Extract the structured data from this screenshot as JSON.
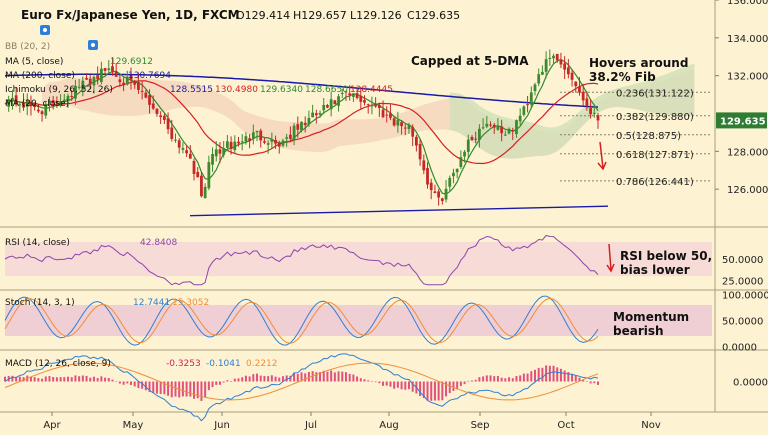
{
  "header": {
    "symbol": "Euro Fx/Japanese Yen, 1D, FXCM",
    "ohlc": [
      {
        "label": "O",
        "value": "129.414"
      },
      {
        "label": "H",
        "value": "129.657"
      },
      {
        "label": "L",
        "value": "129.126"
      },
      {
        "label": "C",
        "value": "129.635"
      }
    ]
  },
  "indicators": {
    "ma5": {
      "label": "MA (5, close)",
      "value": "129.6912"
    },
    "ma200": {
      "label": "MA (200, close)",
      "value": "130.7694"
    },
    "bb": {
      "label": "BB (20, 2)"
    },
    "ichimoku": {
      "label": "Ichimoku (9, 26, 52, 26)",
      "values": [
        "128.5515",
        "130.4980",
        "129.6340",
        "128.6650",
        "128.4445"
      ]
    },
    "ma_extra": {
      "label": "MA (20, close)"
    }
  },
  "annotations": {
    "capped": "Capped at 5-DMA",
    "hovers": [
      "Hovers around",
      "38.2% Fib"
    ],
    "rsi_note": [
      "RSI below 50,",
      "bias lower"
    ],
    "stoch_note": [
      "Momentum",
      "bearish"
    ]
  },
  "colors": {
    "background": "#fdf3d2",
    "up_candle": "#3d8a2e",
    "down_candle": "#c62828",
    "ma200": "#1a1aa8",
    "ma5": "#2e8b2e",
    "ma50": "#d62020",
    "cloud": "#cfe0b8",
    "cloud_bear": "#f3c7b0",
    "price_tag": "#2e7d32",
    "rsi_line": "#8e44ad",
    "stoch_k": "#2f7fd6",
    "stoch_d": "#f08c3a",
    "macd_line": "#2f7fd6",
    "macd_signal": "#f08c3a",
    "macd_hist": "#d81b60"
  },
  "chart_data": [
    {
      "type": "candlestick",
      "pane": "price",
      "title": "Euro Fx/Japanese Yen, 1D, FXCM",
      "x_ticks": [
        "Apr",
        "May",
        "Jun",
        "Jul",
        "Aug",
        "Sep",
        "Oct",
        "Nov"
      ],
      "y_ticks": [
        "136.000",
        "134.000",
        "132.000",
        "128.000",
        "126.000"
      ],
      "ylim": [
        124,
        136
      ],
      "last_price": "129.635",
      "fib_levels": [
        {
          "label": "0.236(131.122)",
          "value": 131.122
        },
        {
          "label": "0.382(129.880)",
          "value": 129.88
        },
        {
          "label": "0.5(128.875)",
          "value": 128.875
        },
        {
          "label": "0.618(127.871)",
          "value": 127.871
        },
        {
          "label": "0.786(126.441)",
          "value": 126.441
        }
      ],
      "series": [
        {
          "name": "MA (5, close)",
          "kind": "ma5"
        },
        {
          "name": "MA (200, close)",
          "kind": "ma200"
        }
      ],
      "support_line": {
        "from": 124.6,
        "to": 125.1
      }
    },
    {
      "type": "line",
      "pane": "rsi",
      "label": "RSI (14, close)",
      "value": "42.8408",
      "y_ticks": [
        "50.0000",
        "25.0000"
      ],
      "ylim": [
        15,
        85
      ],
      "band": [
        30,
        70
      ]
    },
    {
      "type": "line",
      "pane": "stoch",
      "label": "Stoch (14, 3, 1)",
      "values": [
        "12.7441",
        "15.3052"
      ],
      "y_ticks": [
        "100.0000",
        "50.0000",
        "0.0000"
      ],
      "ylim": [
        -5,
        105
      ],
      "band": [
        20,
        80
      ]
    },
    {
      "type": "line",
      "pane": "macd",
      "label": "MACD (12, 26, close, 9)",
      "values": [
        "-0.3253",
        "-0.1041",
        "0.2212"
      ],
      "y_ticks": [
        "0.0000"
      ],
      "ylim": [
        -1.6,
        1.6
      ]
    }
  ]
}
